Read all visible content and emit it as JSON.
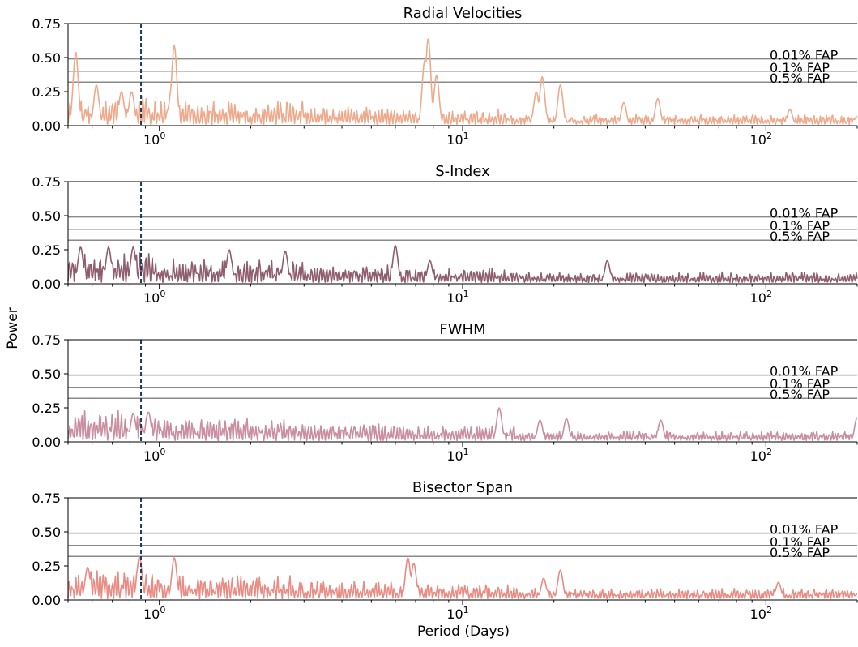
{
  "figure": {
    "ylabel": "Power",
    "xlabel": "Period (Days)"
  },
  "chart_data": [
    {
      "type": "line",
      "title": "Radial Velocities",
      "color": "#eeaa8c",
      "seed": 11,
      "x_scale": "log",
      "xlim": [
        0.5,
        200
      ],
      "ylim": [
        0,
        0.75
      ],
      "yticks": [
        "0.00",
        "0.25",
        "0.50",
        "0.75"
      ],
      "xticks": [
        {
          "value": 1,
          "label": "10",
          "exp": "0"
        },
        {
          "value": 10,
          "label": "10",
          "exp": "1"
        },
        {
          "value": 100,
          "label": "10",
          "exp": "2"
        }
      ],
      "vline": {
        "x": 0.87,
        "style": "dashed",
        "color": "#1f3b5a"
      },
      "fap_levels": [
        {
          "label": "0.01% FAP",
          "value": 0.49
        },
        {
          "label": "0.1% FAP",
          "value": 0.4
        },
        {
          "label": "0.5% FAP",
          "value": 0.32
        }
      ],
      "peaks": [
        [
          0.53,
          0.54
        ],
        [
          0.62,
          0.3
        ],
        [
          0.75,
          0.25
        ],
        [
          0.81,
          0.25
        ],
        [
          1.12,
          0.59
        ],
        [
          1.1,
          0.3
        ],
        [
          7.5,
          0.48
        ],
        [
          7.7,
          0.64
        ],
        [
          8.2,
          0.37
        ],
        [
          17.5,
          0.25
        ],
        [
          18.3,
          0.36
        ],
        [
          21,
          0.3
        ],
        [
          34,
          0.17
        ],
        [
          44,
          0.2
        ],
        [
          120,
          0.12
        ],
        [
          200,
          0.07
        ]
      ]
    },
    {
      "type": "line",
      "title": "S-Index",
      "color": "#8f5e6e",
      "seed": 23,
      "x_scale": "log",
      "xlim": [
        0.5,
        200
      ],
      "ylim": [
        0,
        0.75
      ],
      "yticks": [
        "0.00",
        "0.25",
        "0.50",
        "0.75"
      ],
      "xticks": [
        {
          "value": 1,
          "label": "10",
          "exp": "0"
        },
        {
          "value": 10,
          "label": "10",
          "exp": "1"
        },
        {
          "value": 100,
          "label": "10",
          "exp": "2"
        }
      ],
      "vline": {
        "x": 0.87,
        "style": "dashed",
        "color": "#1f3b5a"
      },
      "fap_levels": [
        {
          "label": "0.01% FAP",
          "value": 0.49
        },
        {
          "label": "0.1% FAP",
          "value": 0.4
        },
        {
          "label": "0.5% FAP",
          "value": 0.32
        }
      ],
      "peaks": [
        [
          0.55,
          0.27
        ],
        [
          0.68,
          0.27
        ],
        [
          0.82,
          0.27
        ],
        [
          1.7,
          0.25
        ],
        [
          2.6,
          0.24
        ],
        [
          6.0,
          0.28
        ],
        [
          7.8,
          0.17
        ],
        [
          30,
          0.17
        ],
        [
          130,
          0.04
        ],
        [
          200,
          0.02
        ]
      ]
    },
    {
      "type": "line",
      "title": "FWHM",
      "color": "#c98e9f",
      "seed": 37,
      "x_scale": "log",
      "xlim": [
        0.5,
        200
      ],
      "ylim": [
        0,
        0.75
      ],
      "yticks": [
        "0.00",
        "0.25",
        "0.50",
        "0.75"
      ],
      "xticks": [
        {
          "value": 1,
          "label": "10",
          "exp": "0"
        },
        {
          "value": 10,
          "label": "10",
          "exp": "1"
        },
        {
          "value": 100,
          "label": "10",
          "exp": "2"
        }
      ],
      "vline": {
        "x": 0.87,
        "style": "dashed",
        "color": "#1f3b5a"
      },
      "fap_levels": [
        {
          "label": "0.01% FAP",
          "value": 0.49
        },
        {
          "label": "0.1% FAP",
          "value": 0.4
        },
        {
          "label": "0.5% FAP",
          "value": 0.32
        }
      ],
      "peaks": [
        [
          0.92,
          0.22
        ],
        [
          0.82,
          0.21
        ],
        [
          13.2,
          0.25
        ],
        [
          18,
          0.16
        ],
        [
          22,
          0.17
        ],
        [
          45,
          0.16
        ],
        [
          200,
          0.18
        ]
      ]
    },
    {
      "type": "line",
      "title": "Bisector Span",
      "color": "#e88c84",
      "seed": 53,
      "x_scale": "log",
      "xlim": [
        0.5,
        200
      ],
      "ylim": [
        0,
        0.75
      ],
      "yticks": [
        "0.00",
        "0.25",
        "0.50",
        "0.75"
      ],
      "xticks": [
        {
          "value": 1,
          "label": "10",
          "exp": "0"
        },
        {
          "value": 10,
          "label": "10",
          "exp": "1"
        },
        {
          "value": 100,
          "label": "10",
          "exp": "2"
        }
      ],
      "vline": {
        "x": 0.87,
        "style": "dashed",
        "color": "#1f3b5a"
      },
      "fap_levels": [
        {
          "label": "0.01% FAP",
          "value": 0.49
        },
        {
          "label": "0.1% FAP",
          "value": 0.4
        },
        {
          "label": "0.5% FAP",
          "value": 0.32
        }
      ],
      "peaks": [
        [
          0.86,
          0.32
        ],
        [
          1.12,
          0.31
        ],
        [
          0.58,
          0.24
        ],
        [
          6.6,
          0.31
        ],
        [
          6.9,
          0.27
        ],
        [
          21,
          0.22
        ],
        [
          18.5,
          0.16
        ],
        [
          110,
          0.13
        ],
        [
          200,
          0.04
        ]
      ]
    }
  ]
}
